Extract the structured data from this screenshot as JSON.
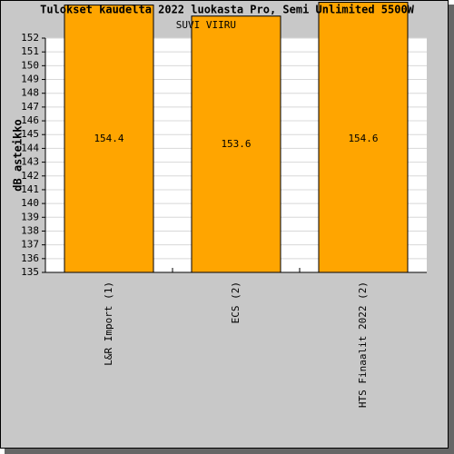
{
  "chart_data": {
    "type": "bar",
    "title": "Tulokset kaudelta 2022 luokasta Pro, Semi Unlimited 5500W",
    "y_label": "dB asteikko",
    "categories": [
      "L&R Import (1)",
      "ECS (2)",
      "HTS Finaalit 2022 (2)"
    ],
    "values": [
      154.4,
      153.6,
      154.6
    ],
    "color": "#ffa500",
    "annotation": "SUVI VIIRU",
    "ylim": [
      135,
      152
    ],
    "yticks": [
      135,
      136,
      137,
      138,
      139,
      140,
      141,
      142,
      143,
      144,
      145,
      146,
      147,
      148,
      149,
      150,
      151,
      152
    ],
    "grid": true
  }
}
